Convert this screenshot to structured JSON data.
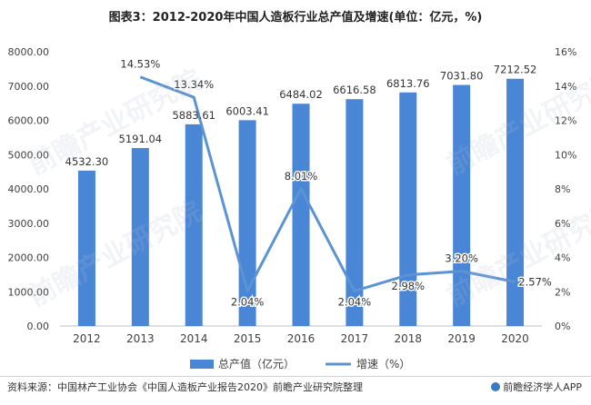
{
  "title": "图表3：2012-2020年中国人造板行业总产值及增速(单位：亿元，%)",
  "source": "资料来源：中国林产工业协会《中国人造板产业报告2020》前瞻产业研究院整理",
  "brand": "前瞻经济学人APP",
  "watermark": "前瞻产业研究院",
  "colors": {
    "bar": "#4a86d6",
    "line": "#5b93d3",
    "axis": "#bfbfbf"
  },
  "chart_data": {
    "type": "bar",
    "categories": [
      "2012",
      "2013",
      "2014",
      "2015",
      "2016",
      "2017",
      "2018",
      "2019",
      "2020"
    ],
    "series": [
      {
        "name": "总产值（亿元）",
        "type": "bar",
        "axis": "left",
        "values": [
          4532.3,
          5191.04,
          5883.61,
          6003.41,
          6484.02,
          6616.58,
          6813.76,
          7031.8,
          7212.52
        ],
        "labels": [
          "4532.30",
          "5191.04",
          "5883.61",
          "6003.41",
          "6484.02",
          "6616.58",
          "6813.76",
          "7031.80",
          "7212.52"
        ]
      },
      {
        "name": "增速（%）",
        "type": "line",
        "axis": "right",
        "values": [
          null,
          14.53,
          13.34,
          2.04,
          8.01,
          2.04,
          2.98,
          3.2,
          2.57
        ],
        "labels": [
          "",
          "14.53%",
          "13.34%",
          "2.04%",
          "8.01%",
          "2.04%",
          "2.98%",
          "3.20%",
          "2.57%"
        ]
      }
    ],
    "y_left": {
      "min": 0,
      "max": 8000,
      "step": 1000,
      "ticks": [
        "0.00",
        "1000.00",
        "2000.00",
        "3000.00",
        "4000.00",
        "5000.00",
        "6000.00",
        "7000.00",
        "8000.00"
      ]
    },
    "y_right": {
      "min": 0,
      "max": 16,
      "step": 2,
      "ticks": [
        "0%",
        "2%",
        "4%",
        "6%",
        "8%",
        "10%",
        "12%",
        "14%",
        "16%"
      ]
    },
    "legend_position": "bottom",
    "grid": false
  }
}
